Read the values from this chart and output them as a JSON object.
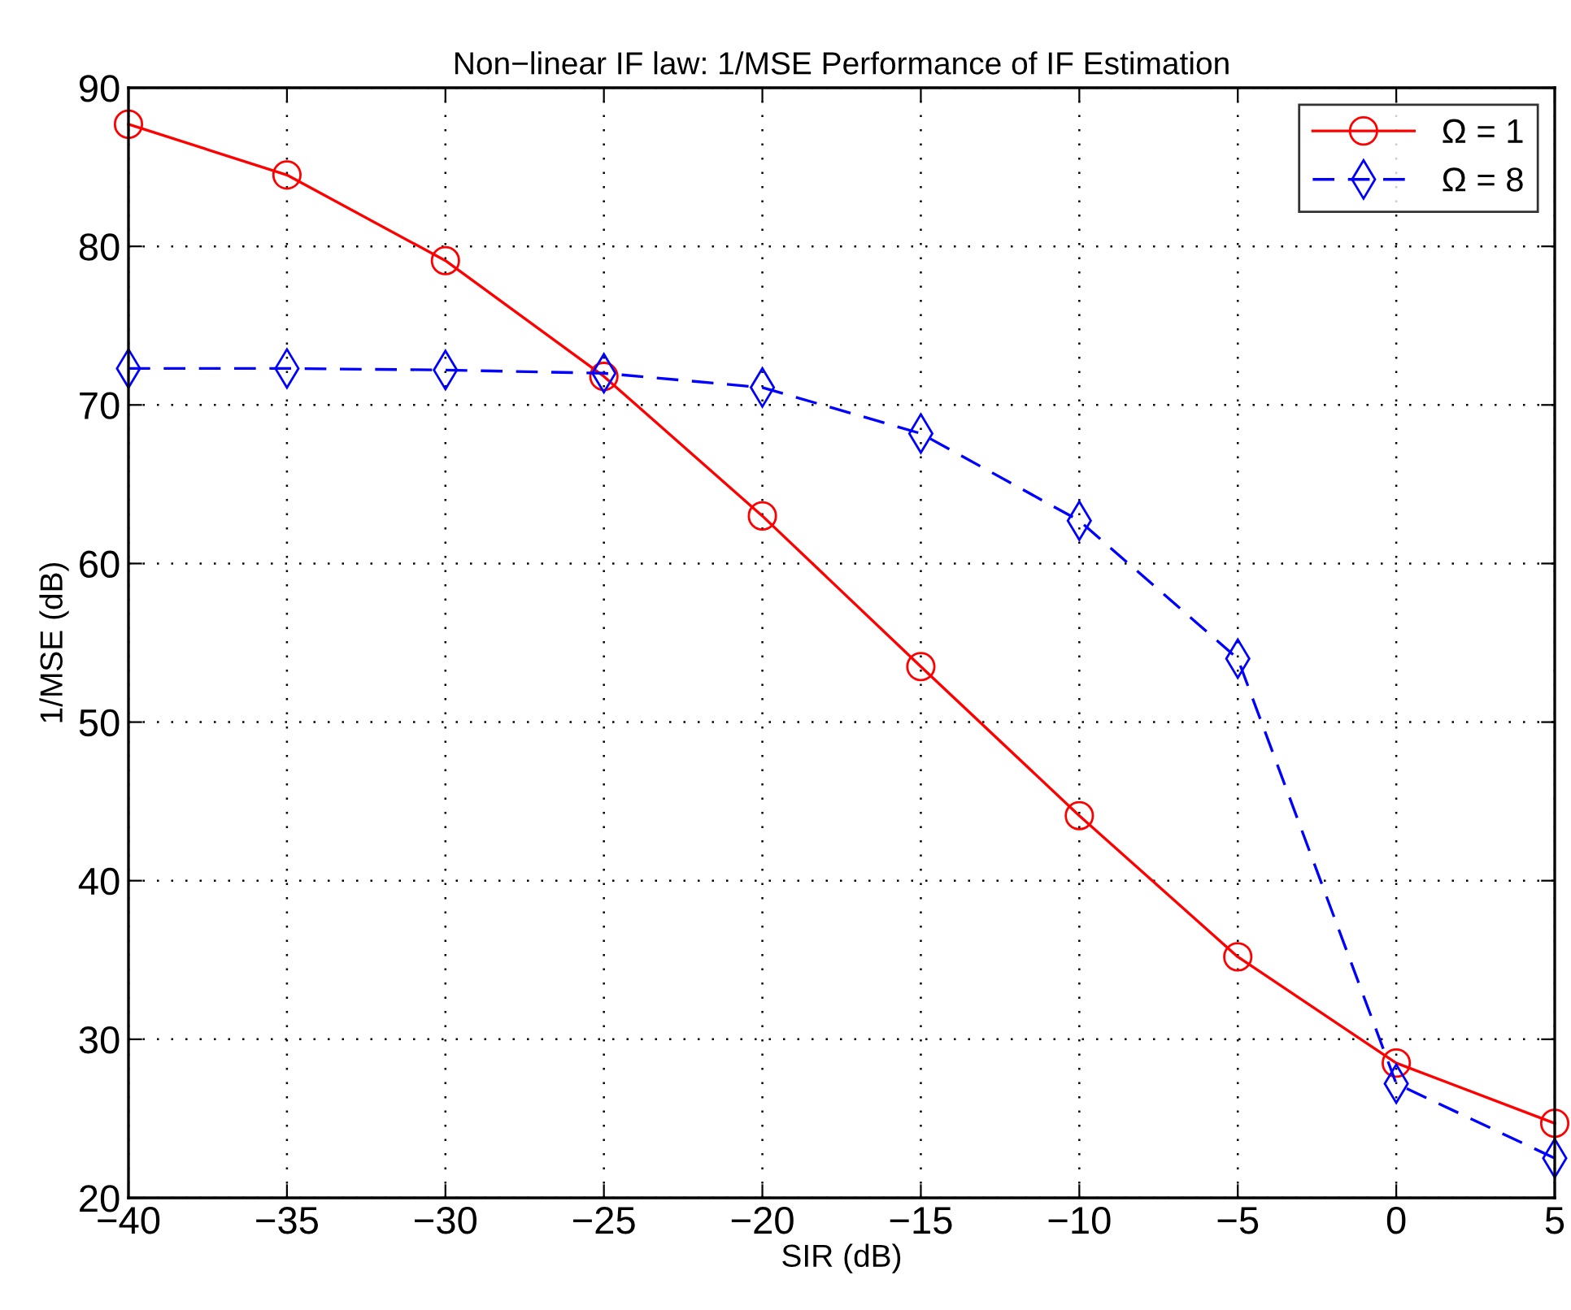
{
  "chart_data": {
    "type": "line",
    "title": "Non−linear IF law: 1/MSE Performance of IF Estimation",
    "xlabel": "SIR (dB)",
    "ylabel": "1/MSE (dB)",
    "x": [
      -40,
      -35,
      -30,
      -25,
      -20,
      -15,
      -10,
      -5,
      0,
      5
    ],
    "series": [
      {
        "name": "Ω = 1",
        "color": "#ff0000",
        "marker": "circle",
        "line_style": "solid",
        "values": [
          87.7,
          84.5,
          79.1,
          71.8,
          63.0,
          53.5,
          44.1,
          35.2,
          28.5,
          24.7
        ]
      },
      {
        "name": "Ω = 8",
        "color": "#0000ff",
        "marker": "diamond",
        "line_style": "dashed",
        "values": [
          72.3,
          72.3,
          72.2,
          72.0,
          71.1,
          68.2,
          62.7,
          54.0,
          27.2,
          22.5
        ]
      }
    ],
    "xlim": [
      -40,
      5
    ],
    "xticks": [
      {
        "value": -40,
        "label": "−40"
      },
      {
        "value": -35,
        "label": "−35"
      },
      {
        "value": -30,
        "label": "−30"
      },
      {
        "value": -25,
        "label": "−25"
      },
      {
        "value": -20,
        "label": "−20"
      },
      {
        "value": -15,
        "label": "−15"
      },
      {
        "value": -10,
        "label": "−10"
      },
      {
        "value": -5,
        "label": "−5"
      },
      0,
      5
    ],
    "ylim": [
      20,
      90
    ],
    "yticks": [
      20,
      30,
      40,
      50,
      60,
      70,
      80,
      90
    ],
    "grid": true,
    "legend": "top right"
  }
}
